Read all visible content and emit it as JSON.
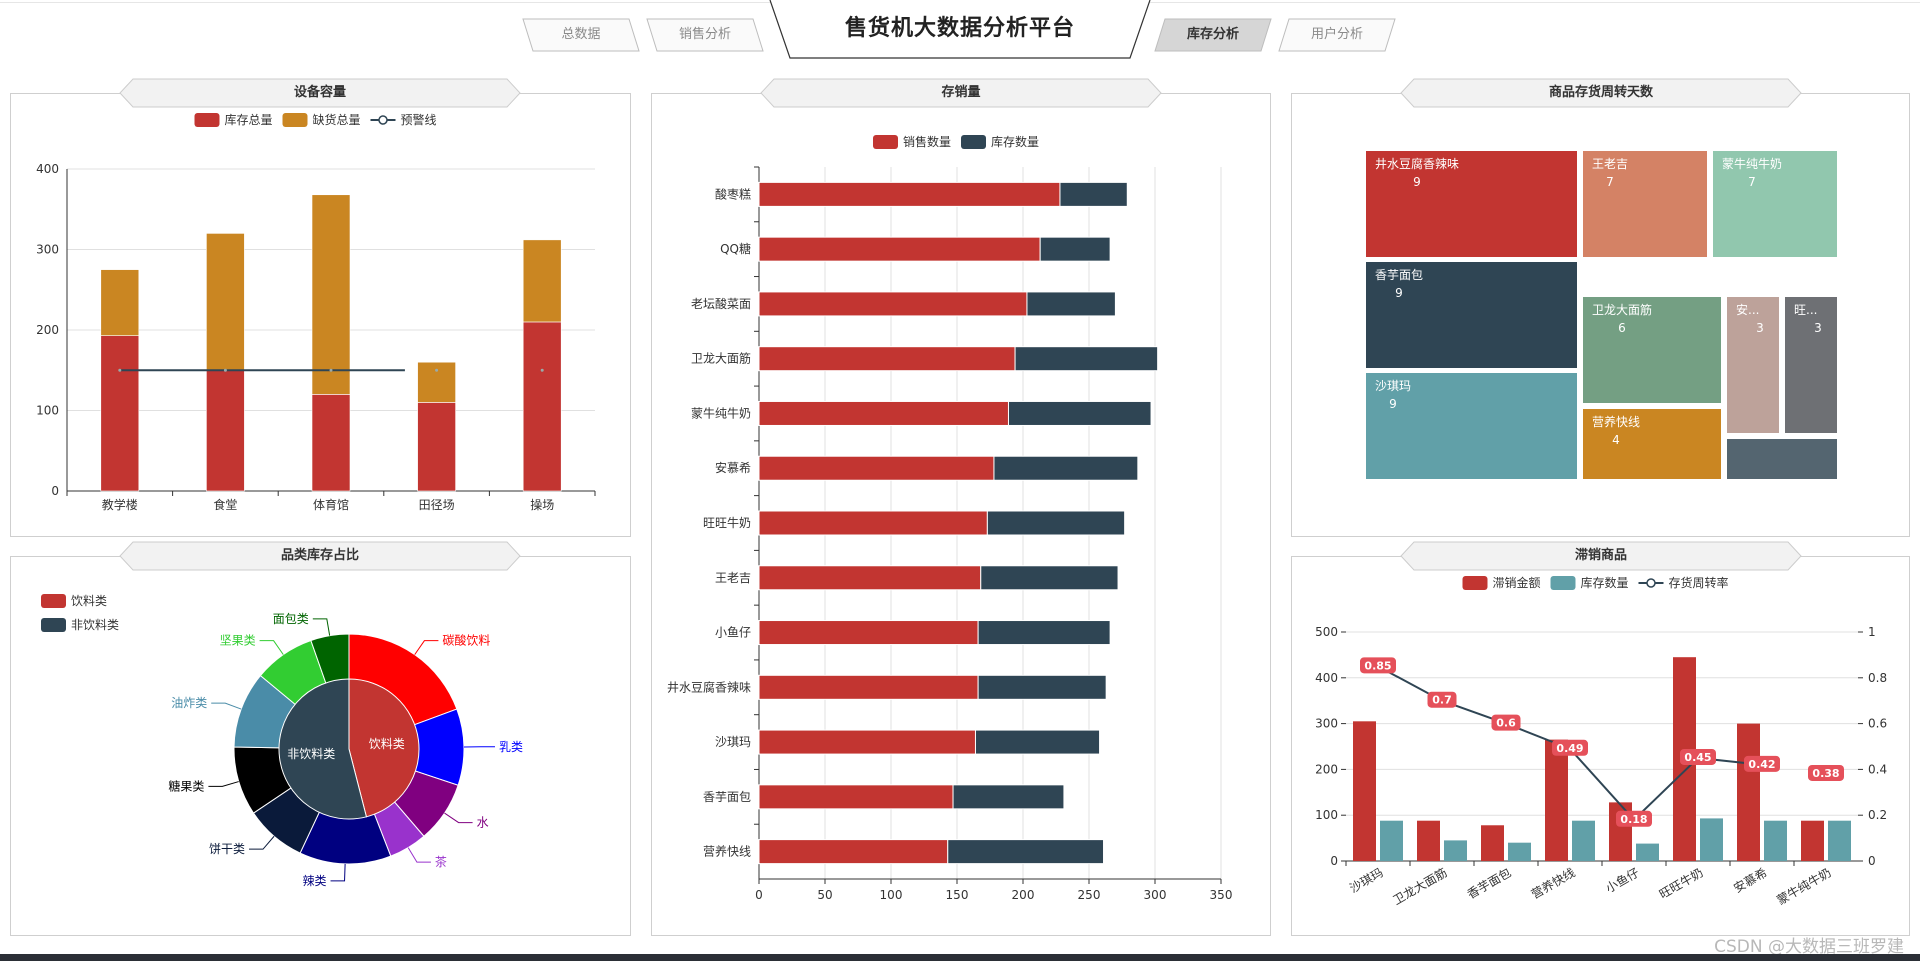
{
  "header": {
    "title": "售货机大数据分析平台",
    "tabs": [
      {
        "label": "总数据",
        "active": false
      },
      {
        "label": "销售分析",
        "active": false
      },
      {
        "label": "库存分析",
        "active": true
      },
      {
        "label": "用户分析",
        "active": false
      }
    ]
  },
  "watermark": "CSDN @大数据三班罗建",
  "colors": {
    "red": "#c23531",
    "navy": "#2f4554",
    "teal": "#61a0a8",
    "orange": "#d48265",
    "green": "#91c7ae",
    "olive": "#749f83",
    "gold": "#ca8622",
    "mauve": "#bda29a",
    "grey": "#6e7074",
    "slate": "#546570",
    "warn": "#e5505a"
  },
  "panels": {
    "capacity": {
      "title": "设备容量"
    },
    "stock_sales": {
      "title": "存销量"
    },
    "turnover": {
      "title": "商品存货周转天数"
    },
    "category": {
      "title": "品类库存占比"
    },
    "slow": {
      "title": "滞销商品"
    }
  },
  "chart_data": [
    {
      "id": "capacity",
      "type": "bar",
      "stacked": true,
      "categories": [
        "教学楼",
        "食堂",
        "体育馆",
        "田径场",
        "操场"
      ],
      "series": [
        {
          "name": "库存总量",
          "values": [
            193,
            150,
            120,
            110,
            210
          ],
          "color": "#c23531"
        },
        {
          "name": "缺货总量",
          "values": [
            82,
            170,
            248,
            50,
            102
          ],
          "color": "#ca8622"
        }
      ],
      "line": {
        "name": "预警线",
        "values": [
          150,
          150,
          150,
          150,
          150
        ],
        "color": "#2f4554"
      },
      "ylim": [
        0,
        400
      ],
      "yticks": [
        0,
        100,
        200,
        300,
        400
      ],
      "legend": "top-center"
    },
    {
      "id": "stock_sales",
      "type": "bar",
      "orientation": "horizontal",
      "stacked": true,
      "categories": [
        "酸枣糕",
        "QQ糖",
        "老坛酸菜面",
        "卫龙大面筋",
        "蒙牛纯牛奶",
        "安慕希",
        "旺旺牛奶",
        "王老吉",
        "小鱼仔",
        "井水豆腐香辣味",
        "沙琪玛",
        "香芋面包",
        "营养快线"
      ],
      "series": [
        {
          "name": "销售数量",
          "values": [
            228,
            213,
            203,
            194,
            189,
            178,
            173,
            168,
            166,
            166,
            164,
            147,
            143
          ],
          "color": "#c23531"
        },
        {
          "name": "库存数量",
          "values": [
            51,
            53,
            67,
            108,
            108,
            109,
            104,
            104,
            100,
            97,
            94,
            84,
            118
          ],
          "color": "#2f4554"
        }
      ],
      "xlim": [
        0,
        350
      ],
      "xticks": [
        0,
        50,
        100,
        150,
        200,
        250,
        300,
        350
      ],
      "legend": "top-center"
    },
    {
      "id": "turnover",
      "type": "treemap",
      "items": [
        {
          "name": "井水豆腐香辣味",
          "label": "井水豆腐香辣味",
          "value": "9",
          "color": "#c23531"
        },
        {
          "name": "王老吉",
          "label": "王老吉",
          "value": "7",
          "color": "#d48265"
        },
        {
          "name": "蒙牛纯牛奶",
          "label": "蒙牛纯牛奶",
          "value": "7",
          "color": "#91c7ae"
        },
        {
          "name": "香芋面包",
          "label": "香芋面包",
          "value": "9",
          "color": "#2f4554"
        },
        {
          "name": "卫龙大面筋",
          "label": "卫龙大面筋",
          "value": "6",
          "color": "#749f83"
        },
        {
          "name": "安慕希",
          "label": "安...",
          "value": "3",
          "color": "#bda29a"
        },
        {
          "name": "旺旺牛奶",
          "label": "旺...",
          "value": "3",
          "color": "#6e7074"
        },
        {
          "name": "沙琪玛",
          "label": "沙琪玛",
          "value": "9",
          "color": "#61a0a8"
        },
        {
          "name": "营养快线",
          "label": "营养快线",
          "value": "4",
          "color": "#ca8622"
        },
        {
          "name": "",
          "label": "",
          "value": "",
          "color": "#546570"
        }
      ]
    },
    {
      "id": "category",
      "type": "pie",
      "legend": [
        "饮料类",
        "非饮料类"
      ],
      "legend_colors": [
        "#c23531",
        "#2f4554"
      ],
      "inner": [
        {
          "name": "饮料类",
          "value": 46,
          "color": "#c23531"
        },
        {
          "name": "非饮料类",
          "value": 54,
          "color": "#2f4554"
        }
      ],
      "outer": [
        {
          "name": "碳酸饮料",
          "value": 18,
          "color": "#ff0000"
        },
        {
          "name": "乳类",
          "value": 10,
          "color": "#0000ff"
        },
        {
          "name": "水",
          "value": 8,
          "color": "#800080"
        },
        {
          "name": "茶",
          "value": 5,
          "color": "#9932cc"
        },
        {
          "name": "辣类",
          "value": 12,
          "color": "#000080"
        },
        {
          "name": "饼干类",
          "value": 8,
          "color": "#0a1a3a"
        },
        {
          "name": "糖果类",
          "value": 9,
          "color": "#000000"
        },
        {
          "name": "油炸类",
          "value": 10,
          "color": "#4a8ca8"
        },
        {
          "name": "坚果类",
          "value": 8,
          "color": "#32cd32"
        },
        {
          "name": "面包类",
          "value": 5,
          "color": "#006400"
        }
      ]
    },
    {
      "id": "slow",
      "type": "bar",
      "categories": [
        "沙琪玛",
        "卫龙大面筋",
        "香芋面包",
        "营养快线",
        "小鱼仔",
        "旺旺牛奶",
        "安慕希",
        "蒙牛纯牛奶"
      ],
      "series": [
        {
          "name": "滞销金额",
          "values": [
            305,
            88,
            78,
            265,
            128,
            445,
            300,
            88
          ],
          "color": "#c23531"
        },
        {
          "name": "库存数量",
          "values": [
            88,
            45,
            40,
            88,
            38,
            93,
            88,
            88
          ],
          "color": "#61a0a8"
        }
      ],
      "line": {
        "name": "存货周转率",
        "values": [
          0.85,
          0.7,
          0.6,
          0.49,
          0.18,
          0.45,
          0.42,
          0.38
        ],
        "labels": [
          "0.85",
          "0.7",
          "0.6",
          "0.49",
          "0.18",
          "0.45",
          "0.42",
          "0.38"
        ],
        "color": "#2f4554",
        "axis": "right"
      },
      "ylim": [
        0,
        500
      ],
      "yticks": [
        0,
        100,
        200,
        300,
        400,
        500
      ],
      "y2lim": [
        0,
        1
      ],
      "y2ticks": [
        0,
        0.2,
        0.4,
        0.6,
        0.8,
        1
      ],
      "legend": "top-center"
    }
  ]
}
